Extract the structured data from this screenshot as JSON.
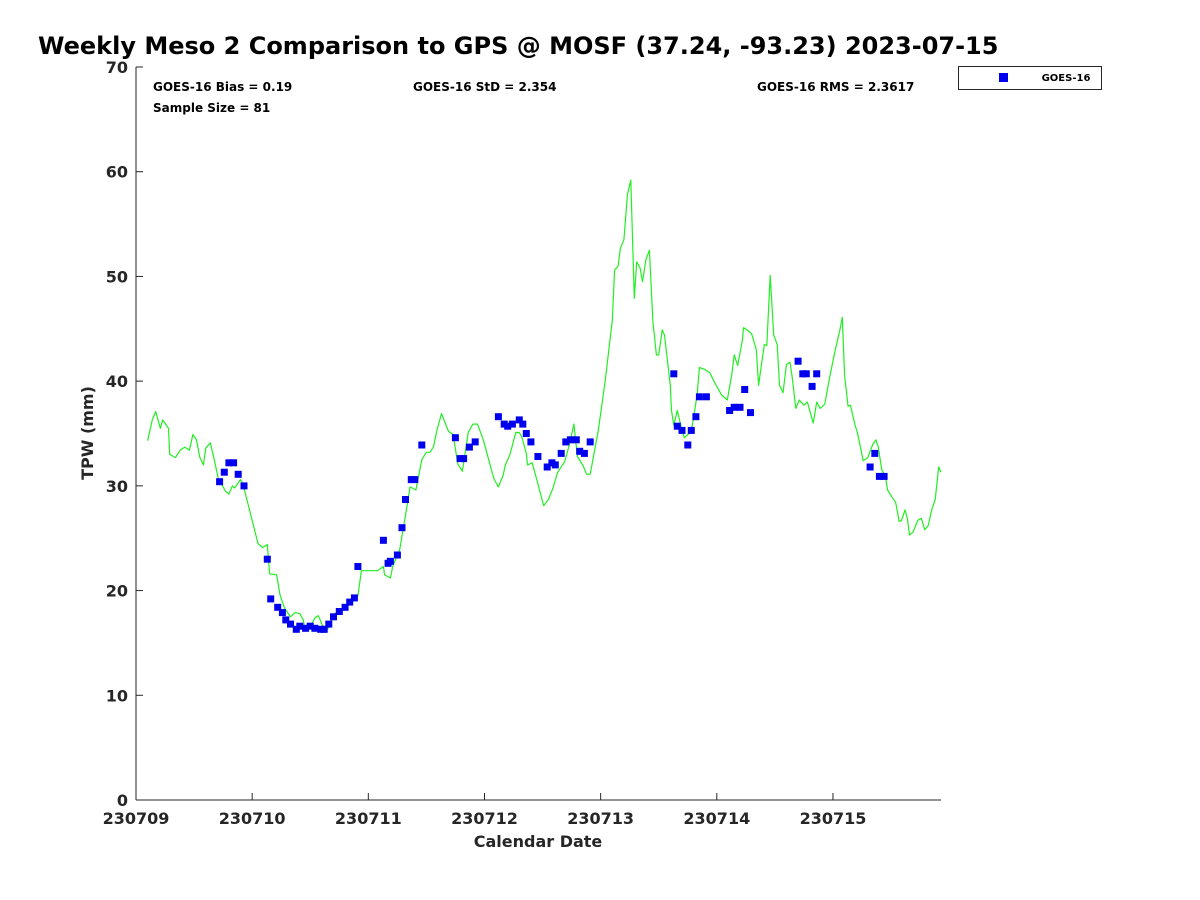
{
  "chart_data": {
    "type": "scatter",
    "title": "Weekly Meso 2 Comparison to GPS @ MOSF (37.24, -93.23) 2023-07-15",
    "xlabel": "Calendar Date",
    "ylabel": "TPW (mm)",
    "x_units": "days since 230709",
    "xlim": [
      0,
      6.93
    ],
    "ylim": [
      0,
      70
    ],
    "xticks": [
      0,
      1,
      2,
      3,
      4,
      5,
      6
    ],
    "xtick_labels": [
      "230709",
      "230710",
      "230711",
      "230712",
      "230713",
      "230714",
      "230715"
    ],
    "yticks": [
      0,
      10,
      20,
      30,
      40,
      50,
      60,
      70
    ],
    "ytick_labels": [
      "0",
      "10",
      "20",
      "30",
      "40",
      "50",
      "60",
      "70"
    ],
    "grid": false,
    "legend": {
      "placement": "outside-top-right",
      "entries": [
        "GOES-16"
      ]
    },
    "stats": {
      "bias": "GOES-16 Bias = 0.19",
      "std": "GOES-16 StD = 2.354",
      "rms": "GOES-16 RMS = 2.3617",
      "sample": "Sample Size = 81"
    },
    "colors": {
      "goes": "#0000ee",
      "gps": "#22ee22"
    },
    "series": [
      {
        "name": "GPS",
        "type": "line",
        "points": [
          [
            0.1,
            34.3
          ],
          [
            0.14,
            36.3
          ],
          [
            0.17,
            37.1
          ],
          [
            0.21,
            35.5
          ],
          [
            0.23,
            36.3
          ],
          [
            0.28,
            35.5
          ],
          [
            0.29,
            33.0
          ],
          [
            0.34,
            32.7
          ],
          [
            0.38,
            33.4
          ],
          [
            0.42,
            33.7
          ],
          [
            0.46,
            33.4
          ],
          [
            0.49,
            34.9
          ],
          [
            0.52,
            34.4
          ],
          [
            0.55,
            32.7
          ],
          [
            0.58,
            32.0
          ],
          [
            0.6,
            33.6
          ],
          [
            0.64,
            34.1
          ],
          [
            0.67,
            32.7
          ],
          [
            0.71,
            30.6
          ],
          [
            0.74,
            30.1
          ],
          [
            0.77,
            29.5
          ],
          [
            0.8,
            29.2
          ],
          [
            0.83,
            30.0
          ],
          [
            0.85,
            29.8
          ],
          [
            0.9,
            30.6
          ],
          [
            0.92,
            30.2
          ],
          [
            1.05,
            24.5
          ],
          [
            1.09,
            24.1
          ],
          [
            1.13,
            24.4
          ],
          [
            1.15,
            21.6
          ],
          [
            1.21,
            21.5
          ],
          [
            1.24,
            19.6
          ],
          [
            1.28,
            18.3
          ],
          [
            1.33,
            17.5
          ],
          [
            1.37,
            17.9
          ],
          [
            1.41,
            17.8
          ],
          [
            1.44,
            17.2
          ],
          [
            1.45,
            16.5
          ],
          [
            1.5,
            16.5
          ],
          [
            1.54,
            17.4
          ],
          [
            1.57,
            17.6
          ],
          [
            1.6,
            16.8
          ],
          [
            1.63,
            16.0
          ],
          [
            1.66,
            16.5
          ],
          [
            1.71,
            17.8
          ],
          [
            1.76,
            18.1
          ],
          [
            1.8,
            18.5
          ],
          [
            1.84,
            18.7
          ],
          [
            1.88,
            19.1
          ],
          [
            1.91,
            19.5
          ],
          [
            1.94,
            21.9
          ],
          [
            2.08,
            21.9
          ],
          [
            2.13,
            22.3
          ],
          [
            2.14,
            21.5
          ],
          [
            2.19,
            21.2
          ],
          [
            2.21,
            22.3
          ],
          [
            2.27,
            23.9
          ],
          [
            2.32,
            27.2
          ],
          [
            2.36,
            29.9
          ],
          [
            2.41,
            29.6
          ],
          [
            2.46,
            32.5
          ],
          [
            2.5,
            33.2
          ],
          [
            2.53,
            33.2
          ],
          [
            2.56,
            33.7
          ],
          [
            2.59,
            35.3
          ],
          [
            2.63,
            36.9
          ],
          [
            2.69,
            35.2
          ],
          [
            2.73,
            34.9
          ],
          [
            2.77,
            32.1
          ],
          [
            2.81,
            31.4
          ],
          [
            2.86,
            35.1
          ],
          [
            2.9,
            35.9
          ],
          [
            2.94,
            35.9
          ],
          [
            2.99,
            34.4
          ],
          [
            3.08,
            30.7
          ],
          [
            3.12,
            29.9
          ],
          [
            3.16,
            31.0
          ],
          [
            3.18,
            32.0
          ],
          [
            3.22,
            33.0
          ],
          [
            3.27,
            35.1
          ],
          [
            3.3,
            35.1
          ],
          [
            3.32,
            34.7
          ],
          [
            3.36,
            33.1
          ],
          [
            3.37,
            32.0
          ],
          [
            3.41,
            32.2
          ],
          [
            3.45,
            30.6
          ],
          [
            3.51,
            28.1
          ],
          [
            3.55,
            28.7
          ],
          [
            3.59,
            29.8
          ],
          [
            3.63,
            31.3
          ],
          [
            3.69,
            32.3
          ],
          [
            3.73,
            33.9
          ],
          [
            3.77,
            35.9
          ],
          [
            3.8,
            32.8
          ],
          [
            3.85,
            31.9
          ],
          [
            3.88,
            31.1
          ],
          [
            3.91,
            31.1
          ],
          [
            3.93,
            32.3
          ],
          [
            3.98,
            35.3
          ],
          [
            4.04,
            40.1
          ],
          [
            4.1,
            45.8
          ],
          [
            4.12,
            50.6
          ],
          [
            4.15,
            51.0
          ],
          [
            4.17,
            52.7
          ],
          [
            4.2,
            53.5
          ],
          [
            4.23,
            57.8
          ],
          [
            4.26,
            59.2
          ],
          [
            4.29,
            47.9
          ],
          [
            4.31,
            51.4
          ],
          [
            4.34,
            50.8
          ],
          [
            4.36,
            49.5
          ],
          [
            4.39,
            51.6
          ],
          [
            4.42,
            52.5
          ],
          [
            4.45,
            45.7
          ],
          [
            4.48,
            42.5
          ],
          [
            4.5,
            42.5
          ],
          [
            4.53,
            44.9
          ],
          [
            4.55,
            44.4
          ],
          [
            4.6,
            39.6
          ],
          [
            4.61,
            37.2
          ],
          [
            4.63,
            35.8
          ],
          [
            4.66,
            37.2
          ],
          [
            4.7,
            35.3
          ],
          [
            4.72,
            34.6
          ],
          [
            4.77,
            35.1
          ],
          [
            4.79,
            35.8
          ],
          [
            4.83,
            38.7
          ],
          [
            4.85,
            41.3
          ],
          [
            4.9,
            41.1
          ],
          [
            4.94,
            40.8
          ],
          [
            4.99,
            39.7
          ],
          [
            5.04,
            38.7
          ],
          [
            5.09,
            38.2
          ],
          [
            5.13,
            40.7
          ],
          [
            5.15,
            42.5
          ],
          [
            5.18,
            41.5
          ],
          [
            5.22,
            43.9
          ],
          [
            5.23,
            45.1
          ],
          [
            5.26,
            44.9
          ],
          [
            5.3,
            44.5
          ],
          [
            5.34,
            43.0
          ],
          [
            5.36,
            39.6
          ],
          [
            5.39,
            42.0
          ],
          [
            5.41,
            43.5
          ],
          [
            5.43,
            43.4
          ],
          [
            5.46,
            50.1
          ],
          [
            5.49,
            44.4
          ],
          [
            5.52,
            43.5
          ],
          [
            5.54,
            39.6
          ],
          [
            5.57,
            38.9
          ],
          [
            5.6,
            41.6
          ],
          [
            5.63,
            41.8
          ],
          [
            5.65,
            40.3
          ],
          [
            5.68,
            37.4
          ],
          [
            5.71,
            38.2
          ],
          [
            5.75,
            37.7
          ],
          [
            5.78,
            38.0
          ],
          [
            5.83,
            36.0
          ],
          [
            5.86,
            38.0
          ],
          [
            5.89,
            37.4
          ],
          [
            5.93,
            37.8
          ],
          [
            5.97,
            40.3
          ],
          [
            6.02,
            43.0
          ],
          [
            6.06,
            44.9
          ],
          [
            6.08,
            46.1
          ],
          [
            6.1,
            40.5
          ],
          [
            6.13,
            37.6
          ],
          [
            6.15,
            37.7
          ],
          [
            6.19,
            35.8
          ],
          [
            6.21,
            35.1
          ],
          [
            6.26,
            32.4
          ],
          [
            6.3,
            32.7
          ],
          [
            6.34,
            33.9
          ],
          [
            6.37,
            34.4
          ],
          [
            6.39,
            33.7
          ],
          [
            6.42,
            31.5
          ],
          [
            6.45,
            31.0
          ],
          [
            6.47,
            29.6
          ],
          [
            6.51,
            28.9
          ],
          [
            6.54,
            28.4
          ],
          [
            6.57,
            26.6
          ],
          [
            6.59,
            26.7
          ],
          [
            6.62,
            27.7
          ],
          [
            6.64,
            26.9
          ],
          [
            6.66,
            25.3
          ],
          [
            6.69,
            25.6
          ],
          [
            6.73,
            26.7
          ],
          [
            6.76,
            26.9
          ],
          [
            6.79,
            25.8
          ],
          [
            6.82,
            26.2
          ],
          [
            6.85,
            27.7
          ],
          [
            6.88,
            28.7
          ],
          [
            6.91,
            31.8
          ],
          [
            6.93,
            31.3
          ]
        ]
      },
      {
        "name": "GOES-16",
        "type": "scatter",
        "points": [
          [
            0.72,
            30.4
          ],
          [
            0.76,
            31.3
          ],
          [
            0.8,
            32.2
          ],
          [
            0.84,
            32.2
          ],
          [
            0.88,
            31.1
          ],
          [
            0.93,
            30.0
          ],
          [
            1.13,
            23.0
          ],
          [
            1.16,
            19.2
          ],
          [
            1.22,
            18.4
          ],
          [
            1.26,
            17.9
          ],
          [
            1.29,
            17.2
          ],
          [
            1.33,
            16.8
          ],
          [
            1.38,
            16.3
          ],
          [
            1.41,
            16.6
          ],
          [
            1.46,
            16.4
          ],
          [
            1.5,
            16.6
          ],
          [
            1.54,
            16.4
          ],
          [
            1.59,
            16.3
          ],
          [
            1.62,
            16.3
          ],
          [
            1.66,
            16.8
          ],
          [
            1.7,
            17.5
          ],
          [
            1.75,
            18.0
          ],
          [
            1.8,
            18.4
          ],
          [
            1.84,
            18.9
          ],
          [
            1.88,
            19.3
          ],
          [
            1.91,
            22.3
          ],
          [
            2.13,
            24.8
          ],
          [
            2.17,
            22.6
          ],
          [
            2.19,
            22.8
          ],
          [
            2.25,
            23.4
          ],
          [
            2.29,
            26.0
          ],
          [
            2.32,
            28.7
          ],
          [
            2.37,
            30.6
          ],
          [
            2.4,
            30.6
          ],
          [
            2.46,
            33.9
          ],
          [
            2.75,
            34.6
          ],
          [
            2.79,
            32.6
          ],
          [
            2.82,
            32.6
          ],
          [
            2.87,
            33.7
          ],
          [
            2.92,
            34.2
          ],
          [
            3.12,
            36.6
          ],
          [
            3.17,
            35.9
          ],
          [
            3.2,
            35.7
          ],
          [
            3.24,
            35.9
          ],
          [
            3.3,
            36.3
          ],
          [
            3.33,
            35.9
          ],
          [
            3.36,
            35.0
          ],
          [
            3.4,
            34.2
          ],
          [
            3.46,
            32.8
          ],
          [
            3.54,
            31.8
          ],
          [
            3.58,
            32.2
          ],
          [
            3.61,
            32.0
          ],
          [
            3.66,
            33.1
          ],
          [
            3.7,
            34.2
          ],
          [
            3.74,
            34.4
          ],
          [
            3.79,
            34.4
          ],
          [
            3.82,
            33.3
          ],
          [
            3.86,
            33.1
          ],
          [
            3.91,
            34.2
          ],
          [
            4.63,
            40.7
          ],
          [
            4.66,
            35.7
          ],
          [
            4.7,
            35.3
          ],
          [
            4.75,
            33.9
          ],
          [
            4.78,
            35.3
          ],
          [
            4.82,
            36.6
          ],
          [
            4.85,
            38.5
          ],
          [
            4.91,
            38.5
          ],
          [
            5.11,
            37.2
          ],
          [
            5.15,
            37.5
          ],
          [
            5.2,
            37.5
          ],
          [
            5.24,
            39.2
          ],
          [
            5.29,
            37.0
          ],
          [
            5.7,
            41.9
          ],
          [
            5.74,
            40.7
          ],
          [
            5.77,
            40.7
          ],
          [
            5.82,
            39.5
          ],
          [
            5.86,
            40.7
          ],
          [
            6.32,
            31.8
          ],
          [
            6.36,
            33.1
          ],
          [
            6.4,
            30.9
          ],
          [
            6.44,
            30.9
          ]
        ]
      }
    ]
  }
}
